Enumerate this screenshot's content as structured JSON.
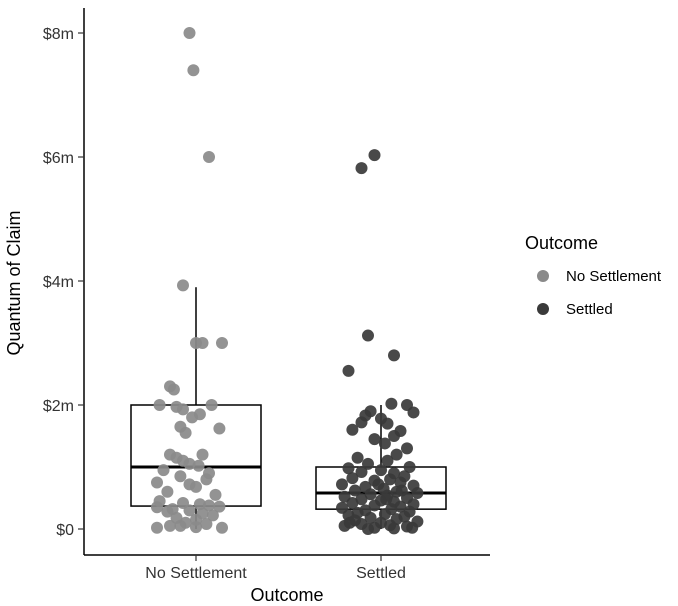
{
  "chart_data": {
    "type": "boxplot-jitter",
    "xlabel": "Outcome",
    "ylabel": "Quantum of Claim",
    "ylim": [
      0,
      8.2
    ],
    "y_ticks": [
      {
        "value": 0,
        "label": "$0"
      },
      {
        "value": 2,
        "label": "$2m"
      },
      {
        "value": 4,
        "label": "$4m"
      },
      {
        "value": 6,
        "label": "$6m"
      },
      {
        "value": 8,
        "label": "$8m"
      }
    ],
    "categories": [
      "No Settlement",
      "Settled"
    ],
    "grid": false,
    "legend": {
      "title": "Outcome",
      "position": "right",
      "entries": [
        {
          "label": "No Settlement",
          "color": "#8a8a8a"
        },
        {
          "label": "Settled",
          "color": "#3a3a3a"
        }
      ]
    },
    "series": [
      {
        "name": "No Settlement",
        "color": "#8a8a8a",
        "box": {
          "q1": 0.37,
          "median": 1.0,
          "q3": 2.0,
          "whisker_low": 0,
          "whisker_high": 3.9
        },
        "points": [
          {
            "x": -0.05,
            "y": 8.0
          },
          {
            "x": -0.02,
            "y": 7.4
          },
          {
            "x": 0.1,
            "y": 6.0
          },
          {
            "x": -0.1,
            "y": 3.93
          },
          {
            "x": 0.0,
            "y": 3.0
          },
          {
            "x": 0.05,
            "y": 3.0
          },
          {
            "x": 0.2,
            "y": 3.0
          },
          {
            "x": -0.2,
            "y": 2.3
          },
          {
            "x": -0.17,
            "y": 2.25
          },
          {
            "x": -0.28,
            "y": 2.0
          },
          {
            "x": -0.15,
            "y": 1.97
          },
          {
            "x": -0.1,
            "y": 1.93
          },
          {
            "x": 0.03,
            "y": 1.85
          },
          {
            "x": 0.12,
            "y": 2.0
          },
          {
            "x": -0.03,
            "y": 1.8
          },
          {
            "x": -0.12,
            "y": 1.65
          },
          {
            "x": -0.08,
            "y": 1.55
          },
          {
            "x": 0.18,
            "y": 1.62
          },
          {
            "x": -0.2,
            "y": 1.2
          },
          {
            "x": -0.15,
            "y": 1.15
          },
          {
            "x": -0.1,
            "y": 1.1
          },
          {
            "x": -0.05,
            "y": 1.05
          },
          {
            "x": 0.02,
            "y": 1.02
          },
          {
            "x": -0.25,
            "y": 0.95
          },
          {
            "x": 0.05,
            "y": 1.2
          },
          {
            "x": 0.1,
            "y": 0.9
          },
          {
            "x": -0.12,
            "y": 0.85
          },
          {
            "x": 0.08,
            "y": 0.8
          },
          {
            "x": -0.3,
            "y": 0.75
          },
          {
            "x": -0.05,
            "y": 0.72
          },
          {
            "x": 0.0,
            "y": 0.68
          },
          {
            "x": -0.22,
            "y": 0.6
          },
          {
            "x": 0.15,
            "y": 0.55
          },
          {
            "x": -0.28,
            "y": 0.45
          },
          {
            "x": 0.03,
            "y": 0.4
          },
          {
            "x": -0.1,
            "y": 0.42
          },
          {
            "x": 0.1,
            "y": 0.38
          },
          {
            "x": -0.3,
            "y": 0.35
          },
          {
            "x": -0.18,
            "y": 0.32
          },
          {
            "x": 0.18,
            "y": 0.36
          },
          {
            "x": -0.05,
            "y": 0.3
          },
          {
            "x": -0.22,
            "y": 0.28
          },
          {
            "x": 0.05,
            "y": 0.25
          },
          {
            "x": 0.13,
            "y": 0.22
          },
          {
            "x": -0.15,
            "y": 0.18
          },
          {
            "x": 0.0,
            "y": 0.15
          },
          {
            "x": -0.08,
            "y": 0.1
          },
          {
            "x": 0.08,
            "y": 0.08
          },
          {
            "x": -0.2,
            "y": 0.05
          },
          {
            "x": -0.3,
            "y": 0.02
          },
          {
            "x": 0.2,
            "y": 0.02
          },
          {
            "x": -0.12,
            "y": 0.05
          },
          {
            "x": 0.0,
            "y": 0.03
          }
        ]
      },
      {
        "name": "Settled",
        "color": "#3a3a3a",
        "box": {
          "q1": 0.32,
          "median": 0.58,
          "q3": 1.0,
          "whisker_low": 0,
          "whisker_high": 2.0
        },
        "points": [
          {
            "x": -0.05,
            "y": 6.03
          },
          {
            "x": -0.15,
            "y": 5.82
          },
          {
            "x": -0.1,
            "y": 3.12
          },
          {
            "x": 0.1,
            "y": 2.8
          },
          {
            "x": -0.25,
            "y": 2.55
          },
          {
            "x": 0.08,
            "y": 2.02
          },
          {
            "x": 0.2,
            "y": 2.0
          },
          {
            "x": -0.08,
            "y": 1.9
          },
          {
            "x": 0.25,
            "y": 1.88
          },
          {
            "x": -0.12,
            "y": 1.83
          },
          {
            "x": 0.0,
            "y": 1.78
          },
          {
            "x": -0.15,
            "y": 1.72
          },
          {
            "x": 0.05,
            "y": 1.7
          },
          {
            "x": -0.22,
            "y": 1.6
          },
          {
            "x": 0.15,
            "y": 1.58
          },
          {
            "x": 0.1,
            "y": 1.5
          },
          {
            "x": -0.05,
            "y": 1.45
          },
          {
            "x": 0.03,
            "y": 1.38
          },
          {
            "x": 0.2,
            "y": 1.3
          },
          {
            "x": 0.12,
            "y": 1.2
          },
          {
            "x": -0.18,
            "y": 1.15
          },
          {
            "x": 0.05,
            "y": 1.1
          },
          {
            "x": -0.1,
            "y": 1.05
          },
          {
            "x": 0.22,
            "y": 1.0
          },
          {
            "x": -0.25,
            "y": 0.98
          },
          {
            "x": 0.0,
            "y": 0.95
          },
          {
            "x": -0.15,
            "y": 0.92
          },
          {
            "x": 0.1,
            "y": 0.9
          },
          {
            "x": 0.18,
            "y": 0.85
          },
          {
            "x": -0.22,
            "y": 0.82
          },
          {
            "x": 0.07,
            "y": 0.8
          },
          {
            "x": -0.05,
            "y": 0.78
          },
          {
            "x": 0.15,
            "y": 0.75
          },
          {
            "x": -0.3,
            "y": 0.72
          },
          {
            "x": 0.25,
            "y": 0.7
          },
          {
            "x": -0.12,
            "y": 0.68
          },
          {
            "x": 0.02,
            "y": 0.65
          },
          {
            "x": -0.2,
            "y": 0.62
          },
          {
            "x": 0.12,
            "y": 0.6
          },
          {
            "x": 0.28,
            "y": 0.58
          },
          {
            "x": -0.08,
            "y": 0.56
          },
          {
            "x": 0.05,
            "y": 0.54
          },
          {
            "x": -0.28,
            "y": 0.52
          },
          {
            "x": 0.2,
            "y": 0.5
          },
          {
            "x": -0.15,
            "y": 0.48
          },
          {
            "x": 0.0,
            "y": 0.46
          },
          {
            "x": 0.1,
            "y": 0.44
          },
          {
            "x": -0.22,
            "y": 0.42
          },
          {
            "x": 0.25,
            "y": 0.4
          },
          {
            "x": -0.05,
            "y": 0.38
          },
          {
            "x": 0.15,
            "y": 0.36
          },
          {
            "x": -0.3,
            "y": 0.34
          },
          {
            "x": 0.08,
            "y": 0.32
          },
          {
            "x": -0.12,
            "y": 0.3
          },
          {
            "x": 0.22,
            "y": 0.28
          },
          {
            "x": -0.18,
            "y": 0.26
          },
          {
            "x": 0.03,
            "y": 0.24
          },
          {
            "x": -0.25,
            "y": 0.22
          },
          {
            "x": 0.18,
            "y": 0.2
          },
          {
            "x": -0.08,
            "y": 0.18
          },
          {
            "x": 0.12,
            "y": 0.16
          },
          {
            "x": -0.2,
            "y": 0.14
          },
          {
            "x": 0.28,
            "y": 0.12
          },
          {
            "x": 0.0,
            "y": 0.1
          },
          {
            "x": -0.15,
            "y": 0.08
          },
          {
            "x": 0.07,
            "y": 0.06
          },
          {
            "x": -0.28,
            "y": 0.05
          },
          {
            "x": 0.2,
            "y": 0.04
          },
          {
            "x": -0.05,
            "y": 0.02
          },
          {
            "x": 0.1,
            "y": 0.01
          },
          {
            "x": -0.1,
            "y": 0.0
          },
          {
            "x": 0.24,
            "y": 0.02
          },
          {
            "x": -0.24,
            "y": 0.1
          },
          {
            "x": 0.16,
            "y": 0.62
          },
          {
            "x": -0.02,
            "y": 0.72
          },
          {
            "x": 0.04,
            "y": 0.48
          }
        ]
      }
    ]
  }
}
